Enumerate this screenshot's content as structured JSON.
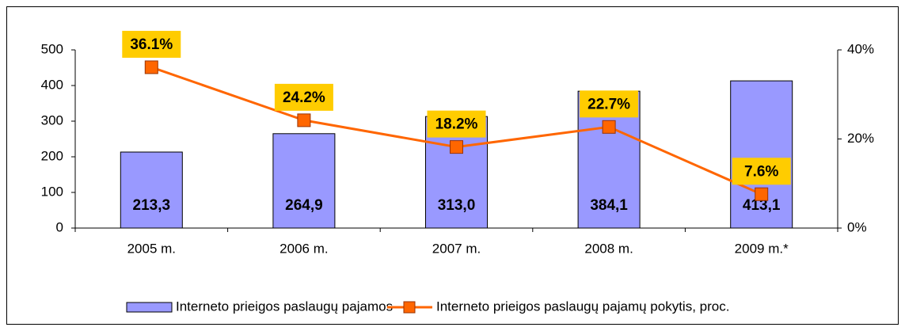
{
  "chart_data": {
    "type": "bar",
    "categories": [
      "2005 m.",
      "2006 m.",
      "2007 m.",
      "2008 m.",
      "2009 m.*"
    ],
    "series": [
      {
        "name": "Interneto prieigos paslaugų pajamos",
        "type": "bar",
        "color": "#9999ff",
        "values": [
          213.3,
          264.9,
          313.0,
          384.1,
          413.1
        ],
        "value_labels": [
          "213,3",
          "264,9",
          "313,0",
          "384,1",
          "413,1"
        ]
      },
      {
        "name": "Interneto prieigos paslaugų pajamų pokytis, proc.",
        "type": "line",
        "axis": "y2",
        "color": "#ff6600",
        "values": [
          36.1,
          24.2,
          18.2,
          22.7,
          7.6
        ],
        "value_labels": [
          "36.1%",
          "24.2%",
          "18.2%",
          "22.7%",
          "7.6%"
        ]
      }
    ],
    "ylim": [
      0,
      500
    ],
    "yticks": [
      0,
      100,
      200,
      300,
      400,
      500
    ],
    "y2lim": [
      0,
      40
    ],
    "y2ticks": [
      {
        "value": 0,
        "label": "0%"
      },
      {
        "value": 20,
        "label": "20%"
      },
      {
        "value": 40,
        "label": "40%"
      }
    ],
    "legend": "bottom"
  }
}
